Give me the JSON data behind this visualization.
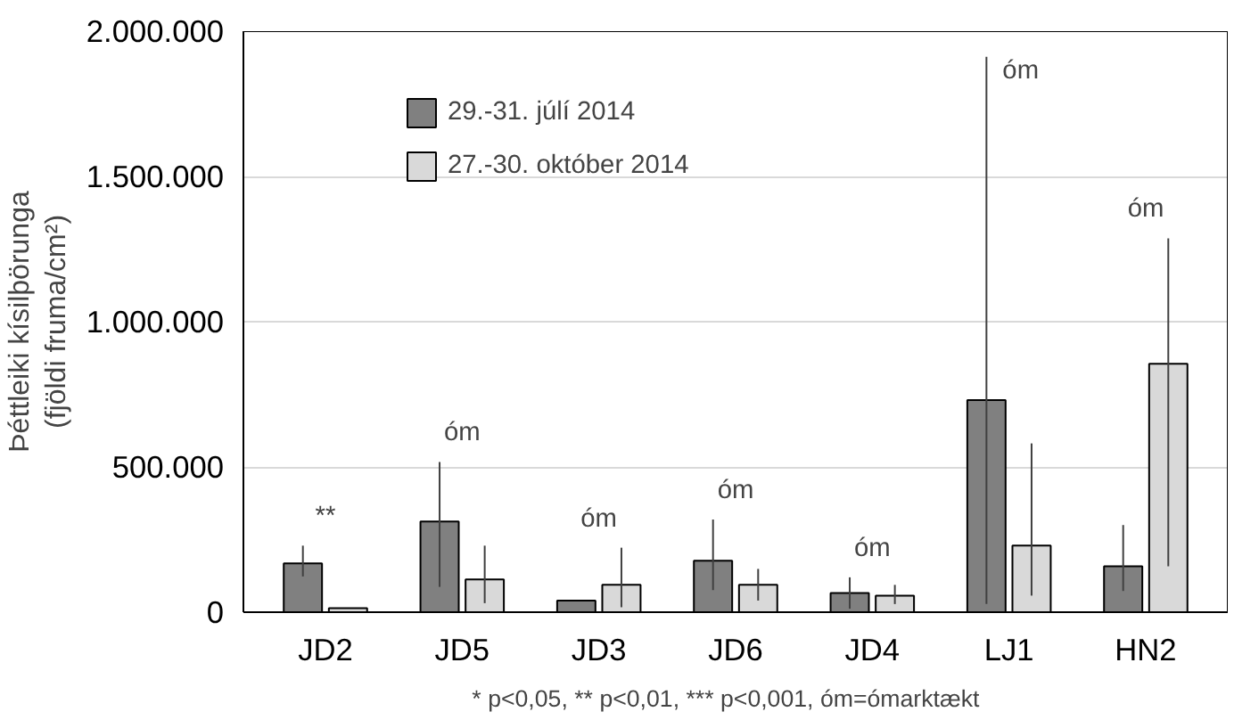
{
  "chart_data": {
    "type": "bar",
    "ylabel": "Þéttleiki kísilþörunga\n(fjöldi fruma/cm²)",
    "categories": [
      "JD2",
      "JD5",
      "JD3",
      "JD6",
      "JD4",
      "LJ1",
      "HN2"
    ],
    "series": [
      {
        "name": "29.-31. júlí 2014",
        "color": "#808080",
        "values": [
          168000,
          312000,
          40000,
          177000,
          66000,
          730000,
          158000
        ],
        "errors": [
          [
            123000,
            229000
          ],
          [
            87000,
            517000
          ],
          null,
          [
            76000,
            319000
          ],
          [
            12000,
            120000
          ],
          [
            28000,
            1912000
          ],
          [
            73000,
            300000
          ]
        ]
      },
      {
        "name": "27.-30. október 2014",
        "color": "#d9d9d9",
        "values": [
          14000,
          113000,
          94000,
          94000,
          57000,
          229000,
          855000
        ],
        "errors": [
          null,
          [
            31000,
            229000
          ],
          [
            17000,
            222000
          ],
          [
            40000,
            149000
          ],
          [
            28000,
            94000
          ],
          [
            57000,
            581000
          ],
          [
            158000,
            1287000
          ]
        ]
      }
    ],
    "ylim": [
      0,
      2000000
    ],
    "yticks": [
      {
        "value": 0,
        "label": "0"
      },
      {
        "value": 500000,
        "label": "500.000"
      },
      {
        "value": 1000000,
        "label": "1.000.000"
      },
      {
        "value": 1500000,
        "label": "1.500.000"
      },
      {
        "value": 2000000,
        "label": "2.000.000"
      }
    ],
    "grid": "y",
    "legend": "top left",
    "annotations": [
      "**",
      "óm",
      "óm",
      "óm",
      "óm",
      "óm",
      "óm",
      "* p<0,05,  ** p<0,01,  *** p<0,001,  óm=ómarktækt"
    ]
  }
}
